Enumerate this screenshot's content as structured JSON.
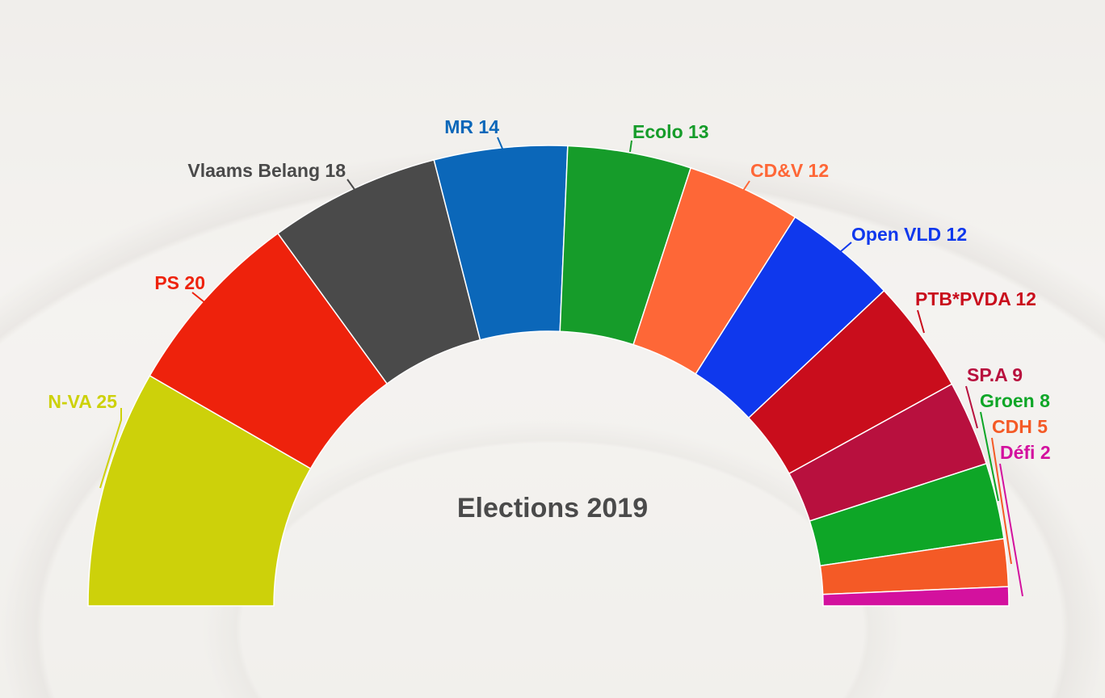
{
  "chart_data": {
    "type": "parliament-semicircle",
    "title": "Elections 2019",
    "total_seats": 150,
    "parties": [
      {
        "name": "N-VA",
        "seats": 25,
        "label": "N-VA 25",
        "color": "#cdd10a"
      },
      {
        "name": "PS",
        "seats": 20,
        "label": "PS 20",
        "color": "#ee220c"
      },
      {
        "name": "Vlaams Belang",
        "seats": 18,
        "label": "Vlaams Belang 18",
        "color": "#4a4a4a"
      },
      {
        "name": "MR",
        "seats": 14,
        "label": "MR 14",
        "color": "#0b67b9"
      },
      {
        "name": "Ecolo",
        "seats": 13,
        "label": "Ecolo 13",
        "color": "#169c2a"
      },
      {
        "name": "CD&V",
        "seats": 12,
        "label": "CD&V 12",
        "color": "#fe6737"
      },
      {
        "name": "Open VLD",
        "seats": 12,
        "label": "Open VLD 12",
        "color": "#0f38ed"
      },
      {
        "name": "PTB*PVDA",
        "seats": 12,
        "label": "PTB*PVDA 12",
        "color": "#c90d1c"
      },
      {
        "name": "SP.A",
        "seats": 9,
        "label": "SP.A 9",
        "color": "#b8103e"
      },
      {
        "name": "Groen",
        "seats": 8,
        "label": "Groen 8",
        "color": "#0ea627"
      },
      {
        "name": "CDH",
        "seats": 5,
        "label": "CDH 5",
        "color": "#f45a26"
      },
      {
        "name": "Défi",
        "seats": 2,
        "label": "Défi 2",
        "color": "#d3119e"
      }
    ]
  }
}
